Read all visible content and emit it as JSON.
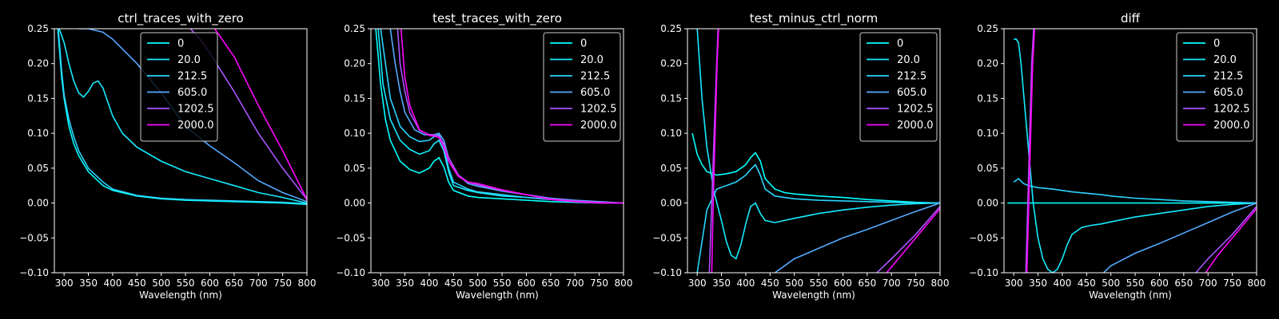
{
  "chart_data": [
    {
      "type": "line",
      "title": "ctrl_traces_with_zero",
      "xlabel": "Wavelength (nm)",
      "ylabel": "",
      "xlim": [
        280,
        800
      ],
      "ylim": [
        -0.1,
        0.25
      ],
      "xticks": [
        "300",
        "350",
        "400",
        "450",
        "500",
        "550",
        "600",
        "650",
        "700",
        "750",
        "800"
      ],
      "yticks": [
        "0.25",
        "0.20",
        "0.15",
        "0.10",
        "0.05",
        "0.00",
        "−0.05",
        "−0.10"
      ],
      "legend_position": "upper-center",
      "series": [
        {
          "name": "0",
          "color": "#00ffff",
          "x": [
            287,
            295,
            300,
            310,
            320,
            330,
            350,
            380,
            400,
            450,
            500,
            550,
            600,
            650,
            700,
            750,
            800
          ],
          "y": [
            0.25,
            0.18,
            0.15,
            0.11,
            0.085,
            0.068,
            0.045,
            0.025,
            0.018,
            0.01,
            0.006,
            0.004,
            0.003,
            0.002,
            0.001,
            0.0,
            -0.002
          ]
        },
        {
          "name": "20.0",
          "color": "#14ebff",
          "x": [
            290,
            300,
            310,
            320,
            330,
            340,
            350,
            360,
            370,
            380,
            390,
            400,
            420,
            450,
            500,
            550,
            600,
            650,
            700,
            750,
            800
          ],
          "y": [
            0.25,
            0.23,
            0.2,
            0.175,
            0.158,
            0.152,
            0.16,
            0.172,
            0.175,
            0.165,
            0.145,
            0.125,
            0.1,
            0.08,
            0.06,
            0.045,
            0.035,
            0.025,
            0.015,
            0.008,
            0.0
          ]
        },
        {
          "name": "212.5",
          "color": "#2ad5ff",
          "x": [
            288,
            295,
            300,
            310,
            320,
            330,
            350,
            380,
            400,
            450,
            500,
            550,
            600,
            650,
            700,
            750,
            800
          ],
          "y": [
            0.25,
            0.19,
            0.155,
            0.12,
            0.095,
            0.075,
            0.05,
            0.03,
            0.02,
            0.011,
            0.007,
            0.005,
            0.004,
            0.003,
            0.002,
            0.001,
            -0.001
          ]
        },
        {
          "name": "605.0",
          "color": "#55aaff",
          "x": [
            330,
            350,
            380,
            400,
            450,
            500,
            550,
            600,
            650,
            700,
            750,
            800
          ],
          "y": [
            0.25,
            0.25,
            0.245,
            0.235,
            0.2,
            0.158,
            0.11,
            0.082,
            0.058,
            0.032,
            0.015,
            0.002
          ]
        },
        {
          "name": "1202.5",
          "color": "#aa55ff",
          "x": [
            560,
            580,
            600,
            650,
            700,
            750,
            800
          ],
          "y": [
            0.25,
            0.235,
            0.215,
            0.16,
            0.1,
            0.05,
            0.005
          ]
        },
        {
          "name": "2000.0",
          "color": "#ff00ff",
          "x": [
            610,
            620,
            650,
            700,
            750,
            800
          ],
          "y": [
            0.25,
            0.24,
            0.21,
            0.14,
            0.075,
            0.005
          ]
        }
      ]
    },
    {
      "type": "line",
      "title": "test_traces_with_zero",
      "xlabel": "Wavelength (nm)",
      "ylabel": "",
      "xlim": [
        280,
        800
      ],
      "ylim": [
        -0.1,
        0.25
      ],
      "xticks": [
        "300",
        "350",
        "400",
        "450",
        "500",
        "550",
        "600",
        "650",
        "700",
        "750",
        "800"
      ],
      "yticks": [
        "0.25",
        "0.20",
        "0.15",
        "0.10",
        "0.05",
        "0.00",
        "−0.05",
        "−0.10"
      ],
      "legend_position": "upper-right",
      "series": [
        {
          "name": "0",
          "color": "#00ffff",
          "x": [
            290,
            300,
            310,
            320,
            340,
            360,
            380,
            400,
            410,
            420,
            430,
            440,
            450,
            480,
            500,
            550,
            600,
            650,
            700,
            750,
            800
          ],
          "y": [
            0.25,
            0.17,
            0.12,
            0.09,
            0.06,
            0.048,
            0.043,
            0.05,
            0.06,
            0.065,
            0.052,
            0.03,
            0.018,
            0.01,
            0.008,
            0.006,
            0.004,
            0.002,
            0.001,
            0.0,
            0.0
          ]
        },
        {
          "name": "20.0",
          "color": "#14ebff",
          "x": [
            295,
            305,
            320,
            340,
            360,
            380,
            400,
            410,
            420,
            430,
            440,
            450,
            480,
            500,
            550,
            600,
            650,
            700,
            750,
            800
          ],
          "y": [
            0.25,
            0.17,
            0.12,
            0.09,
            0.077,
            0.07,
            0.075,
            0.085,
            0.09,
            0.075,
            0.045,
            0.025,
            0.018,
            0.015,
            0.01,
            0.008,
            0.005,
            0.003,
            0.001,
            0.0
          ]
        },
        {
          "name": "212.5",
          "color": "#2ad5ff",
          "x": [
            300,
            310,
            320,
            340,
            360,
            380,
            400,
            410,
            420,
            430,
            440,
            450,
            480,
            500,
            550,
            600,
            650,
            700,
            750,
            800
          ],
          "y": [
            0.25,
            0.2,
            0.15,
            0.11,
            0.095,
            0.088,
            0.09,
            0.095,
            0.098,
            0.082,
            0.05,
            0.03,
            0.02,
            0.016,
            0.012,
            0.008,
            0.005,
            0.003,
            0.001,
            0.0
          ]
        },
        {
          "name": "605.0",
          "color": "#55aaff",
          "x": [
            320,
            330,
            340,
            350,
            370,
            390,
            410,
            420,
            430,
            440,
            460,
            480,
            500,
            550,
            600,
            650,
            700,
            750,
            800
          ],
          "y": [
            0.25,
            0.2,
            0.16,
            0.13,
            0.105,
            0.098,
            0.098,
            0.1,
            0.09,
            0.065,
            0.04,
            0.028,
            0.024,
            0.017,
            0.012,
            0.007,
            0.004,
            0.002,
            0.0
          ]
        },
        {
          "name": "1202.5",
          "color": "#aa55ff",
          "x": [
            335,
            340,
            350,
            360,
            380,
            400,
            410,
            420,
            430,
            440,
            460,
            480,
            500,
            550,
            600,
            650,
            700,
            750,
            800
          ],
          "y": [
            0.25,
            0.2,
            0.16,
            0.13,
            0.104,
            0.098,
            0.098,
            0.096,
            0.085,
            0.065,
            0.04,
            0.03,
            0.026,
            0.018,
            0.012,
            0.006,
            0.003,
            0.001,
            0.0
          ]
        },
        {
          "name": "2000.0",
          "color": "#ff00ff",
          "x": [
            342,
            350,
            360,
            380,
            400,
            410,
            420,
            430,
            440,
            460,
            480,
            500,
            550,
            600,
            650,
            700,
            750,
            800
          ],
          "y": [
            0.25,
            0.18,
            0.14,
            0.105,
            0.097,
            0.096,
            0.094,
            0.08,
            0.06,
            0.038,
            0.03,
            0.028,
            0.019,
            0.012,
            0.005,
            0.002,
            0.0,
            0.0
          ]
        }
      ]
    },
    {
      "type": "line",
      "title": "test_minus_ctrl_norm",
      "xlabel": "Wavelength (nm)",
      "ylabel": "",
      "xlim": [
        280,
        800
      ],
      "ylim": [
        -0.1,
        0.25
      ],
      "xticks": [
        "300",
        "350",
        "400",
        "450",
        "500",
        "550",
        "600",
        "650",
        "700",
        "750",
        "800"
      ],
      "yticks": [
        "0.25",
        "0.20",
        "0.15",
        "0.10",
        "0.05",
        "0.00",
        "−0.05",
        "−0.10"
      ],
      "legend_position": "upper-right",
      "series": [
        {
          "name": "0",
          "color": "#00ffff",
          "x": [
            290,
            300,
            310,
            320,
            340,
            360,
            380,
            400,
            410,
            420,
            430,
            440,
            460,
            480,
            500,
            550,
            600,
            650,
            700,
            750,
            800
          ],
          "y": [
            0.1,
            0.07,
            0.055,
            0.045,
            0.04,
            0.042,
            0.045,
            0.055,
            0.065,
            0.072,
            0.06,
            0.035,
            0.02,
            0.015,
            0.013,
            0.01,
            0.008,
            0.005,
            0.003,
            0.001,
            0.0
          ]
        },
        {
          "name": "20.0",
          "color": "#14ebff",
          "x": [
            300,
            310,
            320,
            335,
            350,
            360,
            370,
            380,
            390,
            400,
            410,
            420,
            430,
            440,
            460,
            480,
            500,
            550,
            600,
            650,
            700,
            750,
            800
          ],
          "y": [
            0.25,
            0.15,
            0.08,
            0.015,
            -0.025,
            -0.055,
            -0.075,
            -0.08,
            -0.06,
            -0.03,
            -0.005,
            0.0,
            -0.015,
            -0.025,
            -0.028,
            -0.025,
            -0.022,
            -0.015,
            -0.01,
            -0.006,
            -0.003,
            -0.001,
            0.0
          ]
        },
        {
          "name": "212.5",
          "color": "#2ad5ff",
          "x": [
            300,
            320,
            340,
            360,
            380,
            400,
            410,
            420,
            430,
            440,
            460,
            480,
            500,
            550,
            600,
            650,
            700,
            750,
            800
          ],
          "y": [
            -0.1,
            -0.01,
            0.02,
            0.025,
            0.03,
            0.04,
            0.048,
            0.055,
            0.04,
            0.02,
            0.01,
            0.008,
            0.006,
            0.004,
            0.003,
            0.002,
            0.001,
            0.0,
            0.0
          ]
        },
        {
          "name": "605.0",
          "color": "#55aaff",
          "x": [
            460,
            480,
            500,
            550,
            600,
            650,
            700,
            750,
            800
          ],
          "y": [
            -0.1,
            -0.09,
            -0.08,
            -0.065,
            -0.05,
            -0.038,
            -0.025,
            -0.012,
            0.0
          ]
        },
        {
          "name": "1202.5",
          "color": "#aa55ff",
          "x": [
            325,
            330,
            335,
            340,
            343,
            670,
            700,
            750,
            800
          ],
          "y": [
            -0.1,
            0.0,
            0.1,
            0.2,
            0.25,
            -0.1,
            -0.08,
            -0.045,
            -0.005
          ]
        },
        {
          "name": "2000.0",
          "color": "#ff00ff",
          "x": [
            330,
            333,
            337,
            341,
            344,
            690,
            720,
            750,
            800
          ],
          "y": [
            -0.1,
            0.0,
            0.1,
            0.2,
            0.25,
            -0.1,
            -0.075,
            -0.05,
            -0.008
          ]
        }
      ]
    },
    {
      "type": "line",
      "title": "diff",
      "xlabel": "Wavelength (nm)",
      "ylabel": "",
      "xlim": [
        280,
        800
      ],
      "ylim": [
        -0.1,
        0.25
      ],
      "xticks": [
        "300",
        "350",
        "400",
        "450",
        "500",
        "550",
        "600",
        "650",
        "700",
        "750",
        "800"
      ],
      "yticks": [
        "0.25",
        "0.20",
        "0.15",
        "0.10",
        "0.05",
        "0.00",
        "−0.05",
        "−0.10"
      ],
      "legend_position": "upper-right",
      "series": [
        {
          "name": "0",
          "color": "#00ffff",
          "x": [
            287,
            800
          ],
          "y": [
            0.0,
            0.0
          ]
        },
        {
          "name": "20.0",
          "color": "#14ebff",
          "x": [
            300,
            305,
            310,
            315,
            320,
            330,
            340,
            350,
            360,
            370,
            380,
            390,
            400,
            410,
            420,
            440,
            460,
            480,
            500,
            550,
            600,
            650,
            700,
            750,
            800
          ],
          "y": [
            0.235,
            0.235,
            0.23,
            0.2,
            0.16,
            0.08,
            0.0,
            -0.05,
            -0.08,
            -0.095,
            -0.1,
            -0.095,
            -0.08,
            -0.06,
            -0.045,
            -0.035,
            -0.032,
            -0.03,
            -0.027,
            -0.02,
            -0.015,
            -0.01,
            -0.005,
            -0.002,
            0.0
          ]
        },
        {
          "name": "212.5",
          "color": "#2ad5ff",
          "x": [
            300,
            310,
            320,
            330,
            350,
            380,
            400,
            420,
            450,
            480,
            500,
            550,
            600,
            650,
            700,
            750,
            800
          ],
          "y": [
            0.03,
            0.035,
            0.028,
            0.025,
            0.022,
            0.02,
            0.018,
            0.016,
            0.014,
            0.012,
            0.01,
            0.007,
            0.005,
            0.003,
            0.002,
            0.001,
            0.0
          ]
        },
        {
          "name": "605.0",
          "color": "#55aaff",
          "x": [
            485,
            500,
            550,
            600,
            650,
            700,
            750,
            800
          ],
          "y": [
            -0.1,
            -0.09,
            -0.072,
            -0.058,
            -0.043,
            -0.028,
            -0.013,
            0.0
          ]
        },
        {
          "name": "1202.5",
          "color": "#aa55ff",
          "x": [
            325,
            329,
            333,
            337,
            341,
            675,
            700,
            750,
            800
          ],
          "y": [
            -0.1,
            0.0,
            0.1,
            0.2,
            0.25,
            -0.1,
            -0.08,
            -0.045,
            -0.005
          ]
        },
        {
          "name": "2000.0",
          "color": "#ff00ff",
          "x": [
            327,
            331,
            335,
            339,
            343,
            695,
            720,
            750,
            800
          ],
          "y": [
            -0.1,
            0.0,
            0.1,
            0.2,
            0.25,
            -0.1,
            -0.075,
            -0.05,
            -0.008
          ]
        }
      ]
    }
  ]
}
